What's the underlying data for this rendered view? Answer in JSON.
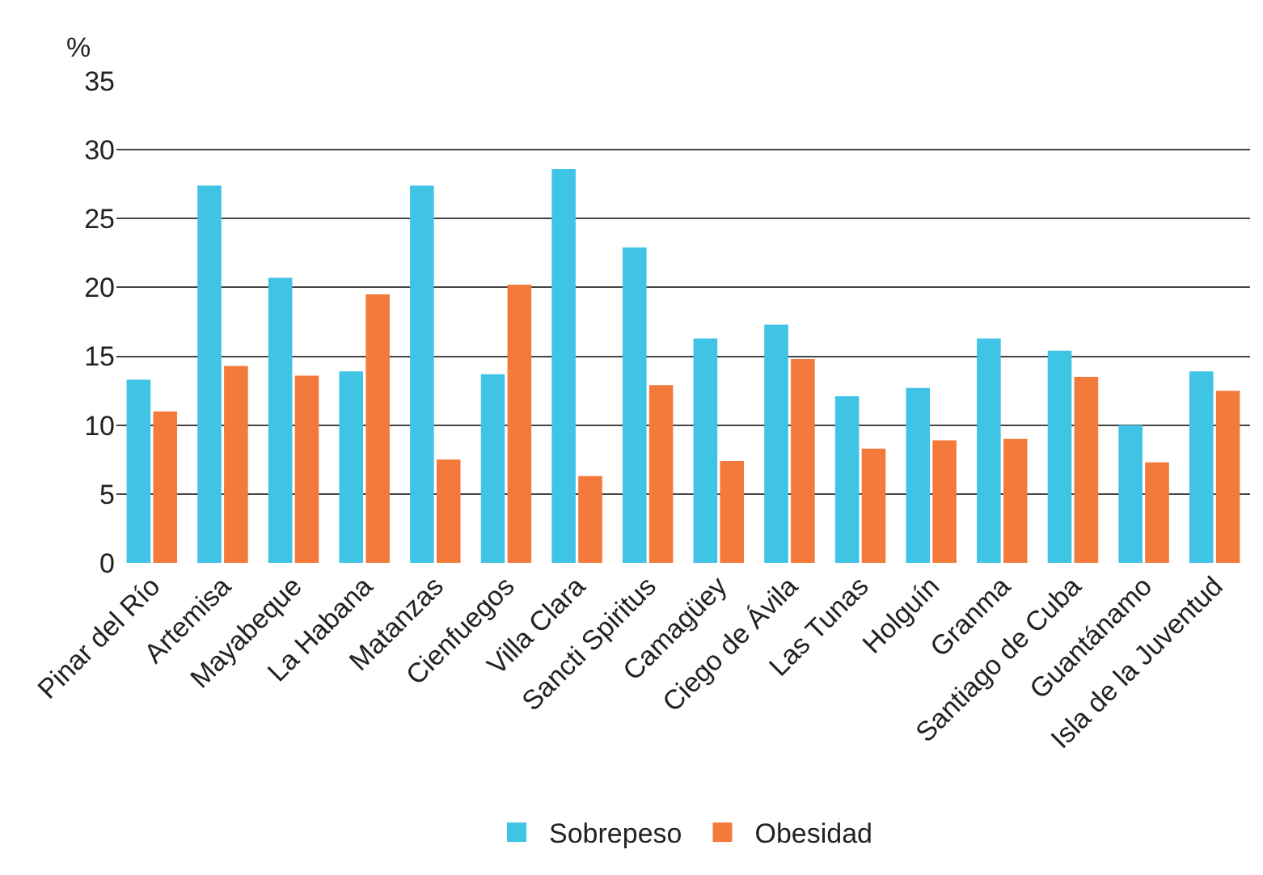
{
  "chart_data": {
    "type": "bar",
    "ylabel": "%",
    "categories": [
      "Pinar del Río",
      "Artemisa",
      "Mayabeque",
      "La Habana",
      "Matanzas",
      "Cienfuegos",
      "Villa Clara",
      "Sancti Spiritus",
      "Camagüey",
      "Ciego de Ávila",
      "Las Tunas",
      "Holguín",
      "Granma",
      "Santiago de Cuba",
      "Guantánamo",
      "Isla de la Juventud"
    ],
    "series": [
      {
        "name": "Sobrepeso",
        "color": "#40c4e6",
        "values": [
          13.3,
          27.4,
          20.7,
          13.9,
          27.4,
          13.7,
          28.6,
          22.9,
          16.3,
          17.3,
          12.1,
          12.7,
          16.3,
          15.4,
          10.0,
          13.9
        ]
      },
      {
        "name": "Obesidad",
        "color": "#f37a3b",
        "values": [
          11.0,
          14.3,
          13.6,
          19.5,
          7.5,
          20.2,
          6.3,
          12.9,
          7.4,
          14.8,
          8.3,
          8.9,
          9.0,
          13.5,
          7.3,
          12.5
        ]
      }
    ],
    "ylim": [
      0,
      35
    ],
    "yticks": [
      0,
      5,
      10,
      15,
      20,
      25,
      30,
      35
    ],
    "grid": "y",
    "legend": "bottom"
  }
}
